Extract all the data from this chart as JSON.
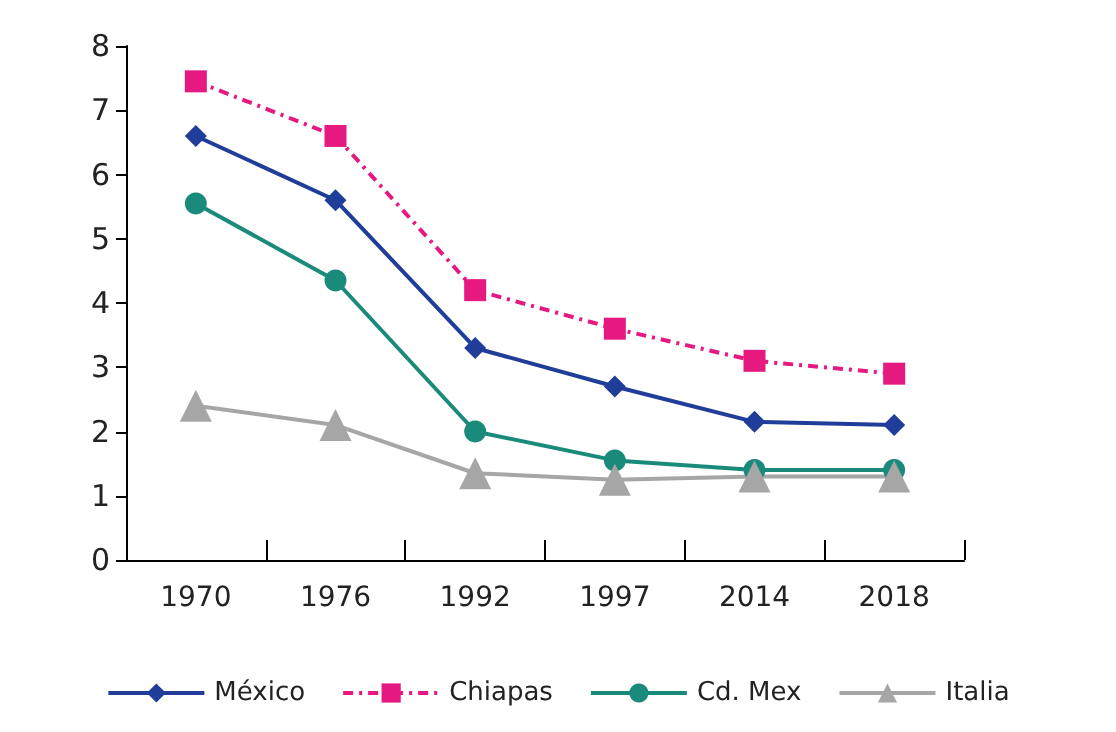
{
  "chart_data": {
    "type": "line",
    "categories": [
      "1970",
      "1976",
      "1992",
      "1997",
      "2014",
      "2018"
    ],
    "series": [
      {
        "name": "México",
        "color": "#1f3d99",
        "marker": "diamond",
        "line_style": "solid",
        "values": [
          6.6,
          5.6,
          3.3,
          2.7,
          2.15,
          2.1
        ]
      },
      {
        "name": "Chiapas",
        "color": "#e5197f",
        "marker": "square",
        "line_style": "dashed",
        "values": [
          7.45,
          6.6,
          4.2,
          3.6,
          3.1,
          2.9
        ]
      },
      {
        "name": "Cd. Mex",
        "color": "#1a8a7a",
        "marker": "circle",
        "line_style": "solid",
        "values": [
          5.55,
          4.35,
          2.0,
          1.55,
          1.4,
          1.4
        ]
      },
      {
        "name": "Italia",
        "color": "#a6a6a6",
        "marker": "triangle",
        "line_style": "solid",
        "values": [
          2.4,
          2.1,
          1.35,
          1.25,
          1.3,
          1.3
        ]
      }
    ],
    "ylim": [
      0,
      8
    ],
    "yticks": [
      0,
      1,
      2,
      3,
      4,
      5,
      6,
      7,
      8
    ],
    "grid": false,
    "legend": "bottom"
  }
}
